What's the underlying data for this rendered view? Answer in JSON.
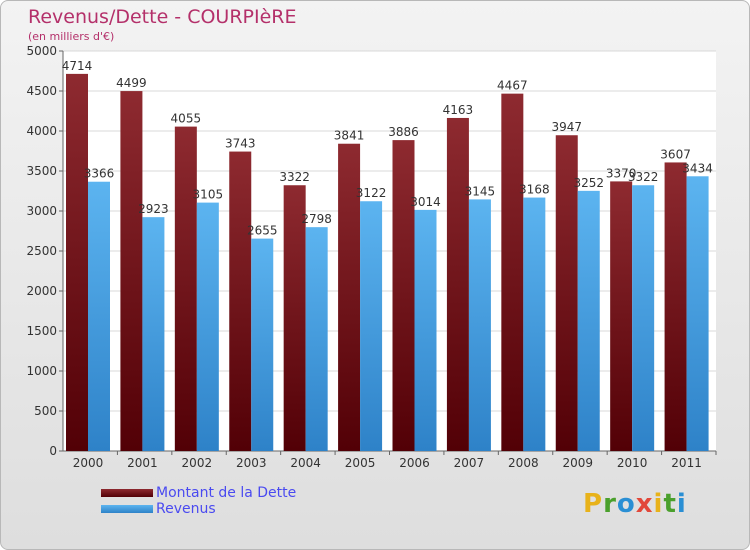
{
  "title": "Revenus/Dette - COURPIèRE",
  "subtitle": "(en milliers d'€)",
  "logo": {
    "letters": [
      "P",
      "r",
      "o",
      "x",
      "i",
      "t",
      "i"
    ],
    "colors": [
      "#e8b21a",
      "#4aa02c",
      "#2a8fd4",
      "#e2483a",
      "#e8b21a",
      "#4aa02c",
      "#2a8fd4"
    ]
  },
  "colors": {
    "dette": "#7a1c22",
    "revenus": "#4aa3e8"
  },
  "chart_data": {
    "type": "bar",
    "title": "Revenus/Dette - COURPIèRE",
    "subtitle": "(en milliers d'€)",
    "categories": [
      "2000",
      "2001",
      "2002",
      "2003",
      "2004",
      "2005",
      "2006",
      "2007",
      "2008",
      "2009",
      "2010",
      "2011"
    ],
    "series": [
      {
        "name": "Montant de la Dette",
        "values": [
          4714,
          4499,
          4055,
          3743,
          3322,
          3841,
          3886,
          4163,
          4467,
          3947,
          3370,
          3607
        ]
      },
      {
        "name": "Revenus",
        "values": [
          3366,
          2923,
          3105,
          2655,
          2798,
          3122,
          3014,
          3145,
          3168,
          3252,
          3322,
          3434
        ]
      }
    ],
    "ylim": [
      0,
      5000
    ],
    "yticks": [
      "0",
      "500",
      "1000",
      "1500",
      "2000",
      "2500",
      "3000",
      "3500",
      "4000",
      "4500",
      "5000"
    ],
    "grid": true,
    "legend": "bottom-left"
  }
}
